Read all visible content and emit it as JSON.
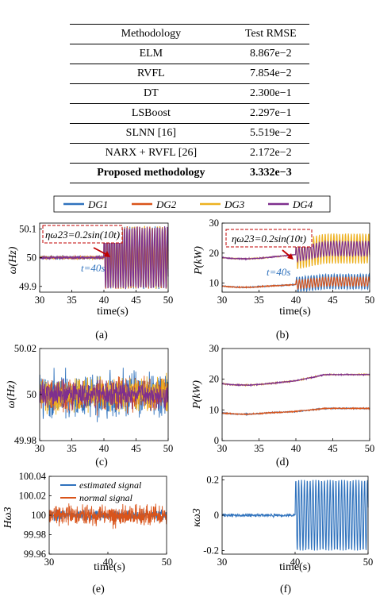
{
  "table": {
    "headers": [
      "Methodology",
      "Test RMSE"
    ],
    "rows": [
      {
        "method": "ELM",
        "rmse": "8.867e−2"
      },
      {
        "method": "RVFL",
        "rmse": "7.854e−2"
      },
      {
        "method": "DT",
        "rmse": "2.300e−1"
      },
      {
        "method": "LSBoost",
        "rmse": "2.297e−1"
      },
      {
        "method": "SLNN [16]",
        "rmse": "5.519e−2"
      },
      {
        "method": "NARX + RVFL [26]",
        "rmse": "2.172e−2"
      },
      {
        "method": "Proposed methodology",
        "rmse": "3.332e−3",
        "bold": true
      }
    ]
  },
  "legend": [
    {
      "name": "DG1",
      "color": "#2f72bd"
    },
    {
      "name": "DG2",
      "color": "#d9541a"
    },
    {
      "name": "DG3",
      "color": "#edb120"
    },
    {
      "name": "DG4",
      "color": "#7e2f8e"
    }
  ],
  "chart_data": [
    {
      "type": "line",
      "panel": "(a)",
      "xlabel": "time(s)",
      "ylabel": "ω(Hz)",
      "xlim": [
        30,
        50
      ],
      "ylim": [
        49.88,
        50.12
      ],
      "xticks": [
        30,
        35,
        40,
        45,
        50
      ],
      "yticks": [
        49.9,
        50,
        50.1
      ],
      "annotations": [
        "ηω23=0.2sin(10t)",
        "t=40s"
      ],
      "series": [
        {
          "name": "DG1",
          "before_mean": 50.0,
          "after_amplitude": 0.11,
          "switch_time": 40
        },
        {
          "name": "DG2",
          "before_mean": 50.0,
          "after_amplitude": 0.11,
          "switch_time": 40
        },
        {
          "name": "DG3",
          "before_mean": 50.0,
          "after_amplitude": 0.11,
          "switch_time": 40
        },
        {
          "name": "DG4",
          "before_mean": 50.0,
          "after_amplitude": 0.11,
          "switch_time": 40
        }
      ]
    },
    {
      "type": "line",
      "panel": "(b)",
      "xlabel": "time(s)",
      "ylabel": "P(kW)",
      "xlim": [
        30,
        50
      ],
      "ylim": [
        7,
        30
      ],
      "xticks": [
        30,
        35,
        40,
        45,
        50
      ],
      "yticks": [
        10,
        20,
        30
      ],
      "annotations": [
        "ηω23=0.2sin(10t)",
        "t=40s"
      ],
      "series": [
        {
          "name": "DG1",
          "level_start": 9,
          "level_at_40": 9.5,
          "level_end": 10.5,
          "after_amplitude": 2.5
        },
        {
          "name": "DG2",
          "level_start": 9,
          "level_at_40": 9.5,
          "level_end": 10.5,
          "after_amplitude": 1.5
        },
        {
          "name": "DG3",
          "level_start": 18.5,
          "level_at_40": 19.5,
          "level_end": 21.5,
          "after_amplitude": 5
        },
        {
          "name": "DG4",
          "level_start": 18.5,
          "level_at_40": 19.5,
          "level_end": 21.5,
          "after_amplitude": 2.5
        }
      ]
    },
    {
      "type": "line",
      "panel": "(c)",
      "xlabel": "",
      "ylabel": "ω(Hz)",
      "xlim": [
        30,
        50
      ],
      "ylim": [
        49.98,
        50.02
      ],
      "xticks": [
        30,
        35,
        40,
        45,
        50
      ],
      "yticks": [
        49.98,
        50,
        50.02
      ],
      "series": [
        {
          "name": "DG1",
          "mean": 50.0,
          "noise": 0.014
        },
        {
          "name": "DG2",
          "mean": 50.0,
          "noise": 0.01
        },
        {
          "name": "DG3",
          "mean": 50.0,
          "noise": 0.01
        },
        {
          "name": "DG4",
          "mean": 50.0,
          "noise": 0.008
        }
      ]
    },
    {
      "type": "line",
      "panel": "(d)",
      "xlabel": "",
      "ylabel": "P(kW)",
      "xlim": [
        30,
        50
      ],
      "ylim": [
        0,
        30
      ],
      "xticks": [
        30,
        35,
        40,
        45,
        50
      ],
      "yticks": [
        0,
        10,
        20,
        30
      ],
      "series": [
        {
          "name": "DG1",
          "level_start": 9,
          "level_at_40": 9.5,
          "level_end": 10.5
        },
        {
          "name": "DG2",
          "level_start": 9,
          "level_at_40": 9.5,
          "level_end": 10.5
        },
        {
          "name": "DG3",
          "level_start": 18.5,
          "level_at_40": 19.5,
          "level_end": 21.5
        },
        {
          "name": "DG4",
          "level_start": 18.5,
          "level_at_40": 19.5,
          "level_end": 21.5
        }
      ]
    },
    {
      "type": "line",
      "panel": "(e)",
      "xlabel": "time(s)",
      "ylabel": "Hω3",
      "xlim": [
        30,
        50
      ],
      "ylim": [
        99.96,
        100.04
      ],
      "xticks": [
        30,
        40,
        50
      ],
      "yticks": [
        99.96,
        99.98,
        100,
        100.02,
        100.04
      ],
      "series": [
        {
          "name": "estimated signal",
          "color": "#2f72bd",
          "mean": 100.0,
          "noise": 0.008
        },
        {
          "name": "normal signal",
          "color": "#d9541a",
          "mean": 100.0,
          "noise": 0.015
        }
      ]
    },
    {
      "type": "line",
      "panel": "(f)",
      "xlabel": "time(s)",
      "ylabel": "κω3",
      "xlim": [
        30,
        50
      ],
      "ylim": [
        -0.22,
        0.22
      ],
      "xticks": [
        30,
        40,
        50
      ],
      "yticks": [
        -0.2,
        0,
        0.2
      ],
      "series": [
        {
          "name": "",
          "color": "#2f72bd",
          "before_mean": 0.0,
          "after_amplitude": 0.2,
          "switch_time": 40
        }
      ]
    }
  ],
  "labels": {
    "a": {
      "caption": "(a)",
      "xlabel": "time(s)",
      "ylabel": "ω(Hz)",
      "xticks": [
        "30",
        "35",
        "40",
        "45",
        "50"
      ],
      "yticks": [
        "49.9",
        "50",
        "50.1"
      ],
      "annot": "ηω23=0.2sin(10t)",
      "t": "t=40s"
    },
    "b": {
      "caption": "(b)",
      "xlabel": "time(s)",
      "ylabel": "P(kW)",
      "xticks": [
        "30",
        "35",
        "40",
        "45",
        "50"
      ],
      "yticks": [
        "10",
        "20",
        "30"
      ],
      "annot": "ηω23=0.2sin(10t)",
      "t": "t=40s"
    },
    "c": {
      "caption": "(c)",
      "ylabel": "ω(Hz)",
      "xticks": [
        "30",
        "35",
        "40",
        "45",
        "50"
      ],
      "yticks": [
        "49.98",
        "50",
        "50.02"
      ]
    },
    "d": {
      "caption": "(d)",
      "ylabel": "P(kW)",
      "xticks": [
        "30",
        "35",
        "40",
        "45",
        "50"
      ],
      "yticks": [
        "0",
        "10",
        "20",
        "30"
      ]
    },
    "e": {
      "caption": "(e)",
      "xlabel": "time(s)",
      "ylabel": "Hω3",
      "xticks": [
        "30",
        "40",
        "50"
      ],
      "yticks": [
        "99.96",
        "99.98",
        "100",
        "100.02",
        "100.04"
      ],
      "legend1": "estimated signal",
      "legend2": "normal signal"
    },
    "f": {
      "caption": "(f)",
      "xlabel": "time(s)",
      "ylabel": "κω3",
      "xticks": [
        "30",
        "40",
        "50"
      ],
      "yticks": [
        "-0.2",
        "0",
        "0.2"
      ]
    }
  }
}
